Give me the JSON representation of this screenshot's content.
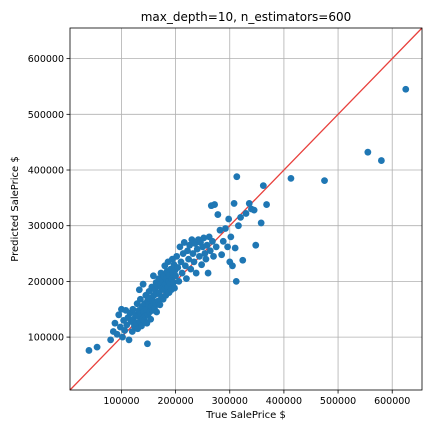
{
  "chart_data": {
    "type": "scatter",
    "title": "max_depth=10, n_estimators=600",
    "xlabel": "True SalePrice $",
    "ylabel": "Predicted SalePrice $",
    "xlim": [
      5000,
      655000
    ],
    "ylim": [
      5000,
      655000
    ],
    "xticks": [
      100000,
      200000,
      300000,
      400000,
      500000,
      600000
    ],
    "yticks": [
      100000,
      200000,
      300000,
      400000,
      500000,
      600000
    ],
    "xtick_labels": [
      "100000",
      "200000",
      "300000",
      "400000",
      "500000",
      "600000"
    ],
    "ytick_labels": [
      "100000",
      "200000",
      "300000",
      "400000",
      "500000",
      "600000"
    ],
    "grid": true,
    "reference_line": "y = x",
    "colors": {
      "points": "#1f77b4",
      "reference_line": "#e8413d",
      "grid": "#b0b0b0"
    },
    "points": [
      [
        40000,
        76000
      ],
      [
        55000,
        82000
      ],
      [
        80000,
        95000
      ],
      [
        85000,
        110000
      ],
      [
        88000,
        125000
      ],
      [
        92000,
        105000
      ],
      [
        95000,
        140000
      ],
      [
        98000,
        118000
      ],
      [
        100000,
        150000
      ],
      [
        102000,
        100000
      ],
      [
        104000,
        130000
      ],
      [
        106000,
        112000
      ],
      [
        108000,
        148000
      ],
      [
        110000,
        122000
      ],
      [
        112000,
        135000
      ],
      [
        114000,
        95000
      ],
      [
        116000,
        143000
      ],
      [
        118000,
        128000
      ],
      [
        120000,
        110000
      ],
      [
        121000,
        150000
      ],
      [
        122000,
        132000
      ],
      [
        124000,
        120000
      ],
      [
        126000,
        140000
      ],
      [
        128000,
        125000
      ],
      [
        129000,
        160000
      ],
      [
        130000,
        115000
      ],
      [
        131000,
        138000
      ],
      [
        132000,
        148000
      ],
      [
        133000,
        185000
      ],
      [
        134000,
        128000
      ],
      [
        135000,
        168000
      ],
      [
        136000,
        142000
      ],
      [
        137000,
        120000
      ],
      [
        138000,
        155000
      ],
      [
        139000,
        133000
      ],
      [
        140000,
        195000
      ],
      [
        141000,
        145000
      ],
      [
        142000,
        130000
      ],
      [
        143000,
        160000
      ],
      [
        144000,
        138000
      ],
      [
        145000,
        175000
      ],
      [
        146000,
        150000
      ],
      [
        147000,
        125000
      ],
      [
        148000,
        88000
      ],
      [
        148000,
        165000
      ],
      [
        149000,
        140000
      ],
      [
        150000,
        158000
      ],
      [
        151000,
        182000
      ],
      [
        152000,
        145000
      ],
      [
        153000,
        170000
      ],
      [
        154000,
        132000
      ],
      [
        155000,
        155000
      ],
      [
        156000,
        190000
      ],
      [
        157000,
        148000
      ],
      [
        158000,
        165000
      ],
      [
        159000,
        210000
      ],
      [
        160000,
        175000
      ],
      [
        161000,
        152000
      ],
      [
        162000,
        185000
      ],
      [
        163000,
        160000
      ],
      [
        164000,
        198000
      ],
      [
        165000,
        145000
      ],
      [
        166000,
        178000
      ],
      [
        167000,
        192000
      ],
      [
        168000,
        165000
      ],
      [
        169000,
        205000
      ],
      [
        170000,
        180000
      ],
      [
        171000,
        158000
      ],
      [
        172000,
        195000
      ],
      [
        173000,
        215000
      ],
      [
        174000,
        172000
      ],
      [
        175000,
        188000
      ],
      [
        176000,
        202000
      ],
      [
        177000,
        168000
      ],
      [
        178000,
        210000
      ],
      [
        179000,
        185000
      ],
      [
        180000,
        228000
      ],
      [
        181000,
        195000
      ],
      [
        182000,
        175000
      ],
      [
        183000,
        205000
      ],
      [
        184000,
        218000
      ],
      [
        185000,
        190000
      ],
      [
        186000,
        235000
      ],
      [
        187000,
        200000
      ],
      [
        188000,
        180000
      ],
      [
        189000,
        212000
      ],
      [
        190000,
        196000
      ],
      [
        191000,
        222000
      ],
      [
        192000,
        185000
      ],
      [
        193000,
        205000
      ],
      [
        194000,
        240000
      ],
      [
        195000,
        215000
      ],
      [
        196000,
        198000
      ],
      [
        197000,
        230000
      ],
      [
        198000,
        188000
      ],
      [
        199000,
        220000
      ],
      [
        200000,
        210000
      ],
      [
        202000,
        245000
      ],
      [
        204000,
        225000
      ],
      [
        206000,
        200000
      ],
      [
        208000,
        262000
      ],
      [
        210000,
        235000
      ],
      [
        212000,
        215000
      ],
      [
        214000,
        250000
      ],
      [
        216000,
        270000
      ],
      [
        218000,
        228000
      ],
      [
        220000,
        205000
      ],
      [
        222000,
        255000
      ],
      [
        224000,
        240000
      ],
      [
        226000,
        265000
      ],
      [
        228000,
        222000
      ],
      [
        230000,
        275000
      ],
      [
        232000,
        250000
      ],
      [
        234000,
        235000
      ],
      [
        236000,
        268000
      ],
      [
        238000,
        215000
      ],
      [
        240000,
        258000
      ],
      [
        242000,
        275000
      ],
      [
        244000,
        245000
      ],
      [
        246000,
        270000
      ],
      [
        248000,
        230000
      ],
      [
        250000,
        262000
      ],
      [
        252000,
        278000
      ],
      [
        254000,
        250000
      ],
      [
        256000,
        240000
      ],
      [
        258000,
        265000
      ],
      [
        260000,
        215000
      ],
      [
        262000,
        280000
      ],
      [
        264000,
        255000
      ],
      [
        266000,
        336000
      ],
      [
        268000,
        272000
      ],
      [
        270000,
        245000
      ],
      [
        272000,
        338000
      ],
      [
        275000,
        262000
      ],
      [
        278000,
        320000
      ],
      [
        282000,
        292000
      ],
      [
        285000,
        248000
      ],
      [
        288000,
        272000
      ],
      [
        292000,
        295000
      ],
      [
        296000,
        262000
      ],
      [
        298000,
        312000
      ],
      [
        300000,
        235000
      ],
      [
        302000,
        280000
      ],
      [
        305000,
        228000
      ],
      [
        308000,
        340000
      ],
      [
        310000,
        260000
      ],
      [
        312000,
        200000
      ],
      [
        313000,
        388000
      ],
      [
        316000,
        300000
      ],
      [
        320000,
        315000
      ],
      [
        324000,
        238000
      ],
      [
        330000,
        322000
      ],
      [
        336000,
        340000
      ],
      [
        340000,
        330000
      ],
      [
        345000,
        328000
      ],
      [
        348000,
        265000
      ],
      [
        358000,
        305000
      ],
      [
        362000,
        372000
      ],
      [
        368000,
        338000
      ],
      [
        413000,
        385000
      ],
      [
        475000,
        381000
      ],
      [
        555000,
        432000
      ],
      [
        580000,
        417000
      ],
      [
        625000,
        545000
      ]
    ]
  }
}
